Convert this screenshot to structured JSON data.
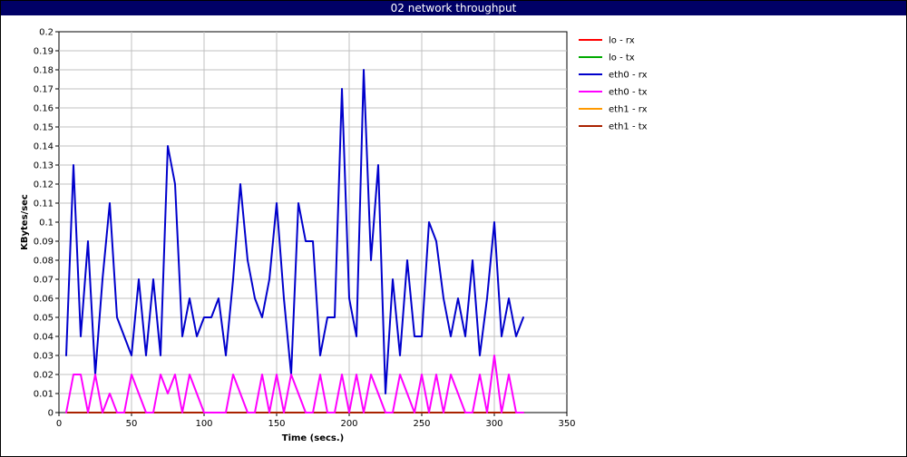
{
  "window": {
    "title": "02 network throughput"
  },
  "chart_data": {
    "type": "line",
    "title": "02 network throughput",
    "xlabel": "Time (secs.)",
    "ylabel": "KBytes/sec",
    "xlim": [
      0,
      350
    ],
    "ylim": [
      0,
      0.2
    ],
    "x_ticks": [
      0,
      50,
      100,
      150,
      200,
      250,
      300,
      350
    ],
    "y_ticks": [
      0,
      0.01,
      0.02,
      0.03,
      0.04,
      0.05,
      0.06,
      0.07,
      0.08,
      0.09,
      0.1,
      0.11,
      0.12,
      0.13,
      0.14,
      0.15,
      0.16,
      0.17,
      0.18,
      0.19,
      0.2
    ],
    "grid": true,
    "legend_position": "right",
    "series": [
      {
        "name": "lo - rx",
        "color": "#ff0000",
        "x": [
          5,
          320
        ],
        "y": [
          0,
          0
        ]
      },
      {
        "name": "lo - tx",
        "color": "#00aa00",
        "x": [
          5,
          320
        ],
        "y": [
          0,
          0
        ]
      },
      {
        "name": "eth0 - rx",
        "color": "#0000cc",
        "x": [
          5,
          10,
          15,
          20,
          25,
          30,
          35,
          40,
          45,
          50,
          55,
          60,
          65,
          70,
          75,
          80,
          85,
          90,
          95,
          100,
          105,
          110,
          115,
          120,
          125,
          130,
          135,
          140,
          145,
          150,
          155,
          160,
          165,
          170,
          175,
          180,
          185,
          190,
          195,
          200,
          205,
          210,
          215,
          220,
          225,
          230,
          235,
          240,
          245,
          250,
          255,
          260,
          265,
          270,
          275,
          280,
          285,
          290,
          295,
          300,
          305,
          310,
          315,
          320
        ],
        "y": [
          0.03,
          0.13,
          0.04,
          0.09,
          0.02,
          0.07,
          0.11,
          0.05,
          0.04,
          0.03,
          0.07,
          0.03,
          0.07,
          0.03,
          0.14,
          0.12,
          0.04,
          0.06,
          0.04,
          0.05,
          0.05,
          0.06,
          0.03,
          0.07,
          0.12,
          0.08,
          0.06,
          0.05,
          0.07,
          0.11,
          0.06,
          0.02,
          0.11,
          0.09,
          0.09,
          0.03,
          0.05,
          0.05,
          0.17,
          0.06,
          0.04,
          0.18,
          0.08,
          0.13,
          0.01,
          0.07,
          0.03,
          0.08,
          0.04,
          0.04,
          0.1,
          0.09,
          0.06,
          0.04,
          0.06,
          0.04,
          0.08,
          0.03,
          0.06,
          0.1,
          0.04,
          0.06,
          0.04,
          0.05
        ]
      },
      {
        "name": "eth0 - tx",
        "color": "#ff00ff",
        "x": [
          5,
          10,
          15,
          20,
          25,
          30,
          35,
          40,
          45,
          50,
          55,
          60,
          65,
          70,
          75,
          80,
          85,
          90,
          95,
          100,
          105,
          110,
          115,
          120,
          125,
          130,
          135,
          140,
          145,
          150,
          155,
          160,
          165,
          170,
          175,
          180,
          185,
          190,
          195,
          200,
          205,
          210,
          215,
          220,
          225,
          230,
          235,
          240,
          245,
          250,
          255,
          260,
          265,
          270,
          275,
          280,
          285,
          290,
          295,
          300,
          305,
          310,
          315,
          320
        ],
        "y": [
          0,
          0.02,
          0.02,
          0,
          0.02,
          0,
          0.01,
          0,
          0,
          0.02,
          0.01,
          0,
          0,
          0.02,
          0.01,
          0.02,
          0,
          0.02,
          0.01,
          0,
          0,
          0,
          0,
          0.02,
          0.01,
          0,
          0,
          0.02,
          0,
          0.02,
          0,
          0.02,
          0.01,
          0,
          0,
          0.02,
          0,
          0,
          0.02,
          0,
          0.02,
          0,
          0.02,
          0.01,
          0,
          0,
          0.02,
          0.01,
          0,
          0.02,
          0,
          0.02,
          0,
          0.02,
          0.01,
          0,
          0,
          0.02,
          0,
          0.03,
          0,
          0.02,
          0,
          0
        ]
      },
      {
        "name": "eth1 - rx",
        "color": "#ff9900",
        "x": [
          5,
          320
        ],
        "y": [
          0,
          0
        ]
      },
      {
        "name": "eth1 - tx",
        "color": "#aa2200",
        "x": [
          5,
          320
        ],
        "y": [
          0,
          0
        ]
      }
    ]
  }
}
